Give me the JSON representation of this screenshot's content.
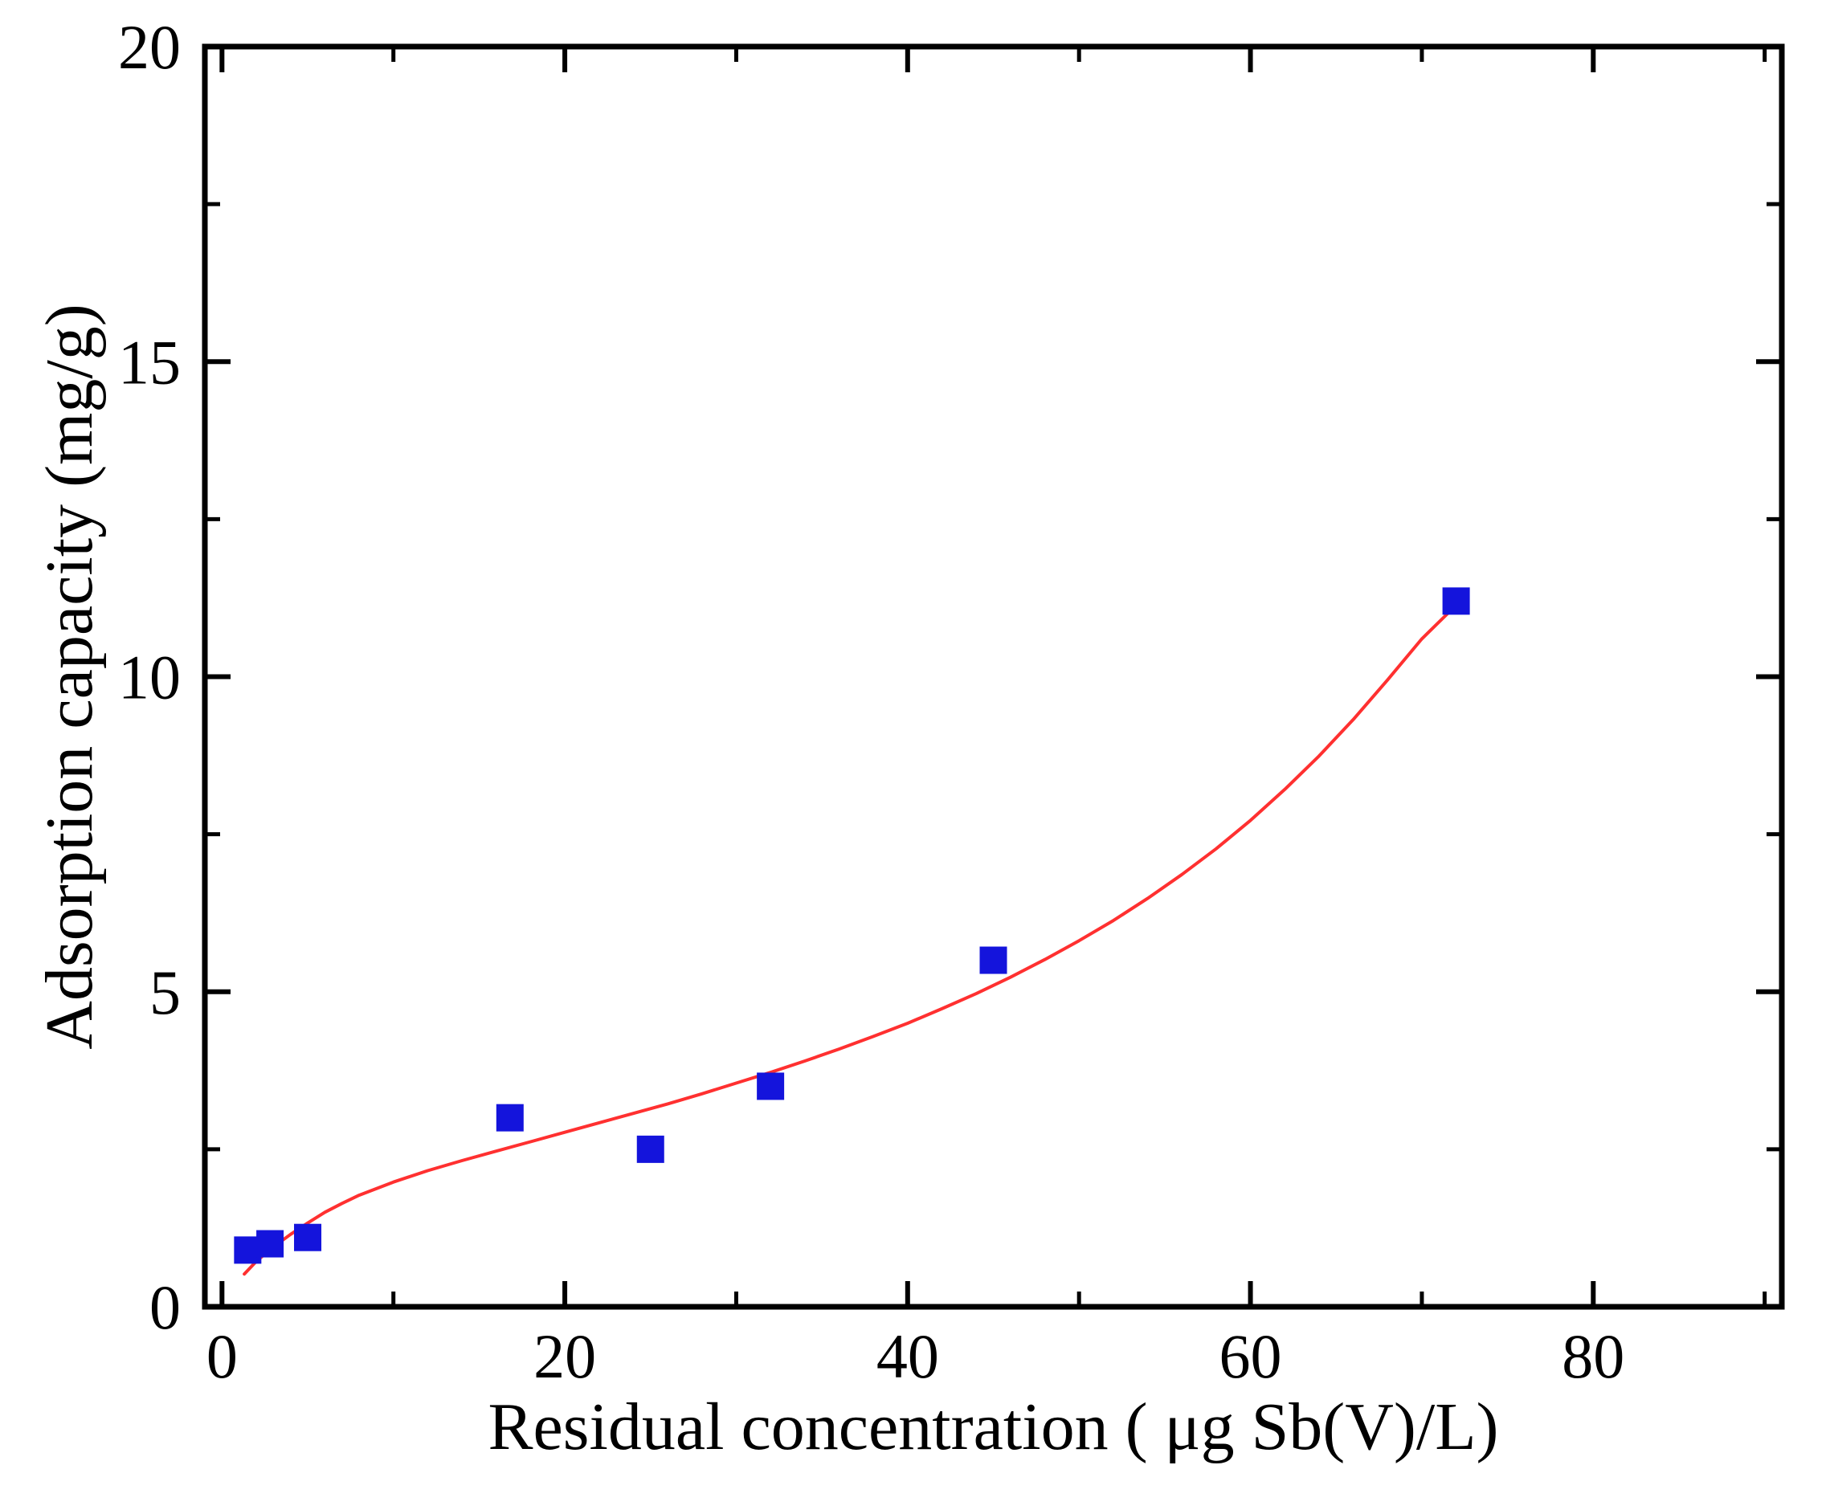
{
  "chart_data": {
    "type": "scatter",
    "title": "",
    "xlabel": "Residual concentration ( μg Sb(V)/L)",
    "ylabel": "Adsorption capacity (mg/g)",
    "xlim": [
      -1,
      91
    ],
    "ylim": [
      0,
      20
    ],
    "x_major_ticks": [
      0,
      20,
      40,
      60,
      80
    ],
    "x_minor_ticks": [
      10,
      30,
      50,
      70,
      90
    ],
    "y_major_ticks": [
      0,
      5,
      10,
      15,
      20
    ],
    "y_minor_ticks": [
      2.5,
      7.5,
      12.5,
      17.5
    ],
    "grid": false,
    "legend": "none",
    "colors": {
      "marker": "#1414dc",
      "fit_line": "#ff3030",
      "axis": "#000000",
      "background": "#ffffff"
    },
    "series": [
      {
        "marker": "square",
        "color": "#1414dc",
        "points": [
          [
            1.5,
            0.9
          ],
          [
            2.8,
            1.0
          ],
          [
            5.0,
            1.1
          ],
          [
            16.8,
            3.0
          ],
          [
            25.0,
            2.5
          ],
          [
            32.0,
            3.5
          ],
          [
            45.0,
            5.5
          ],
          [
            72.0,
            11.2
          ]
        ]
      }
    ],
    "fit_curve": {
      "color": "#ff3030",
      "points": [
        [
          1.3,
          0.52
        ],
        [
          2,
          0.72
        ],
        [
          3,
          0.95
        ],
        [
          4,
          1.15
        ],
        [
          5,
          1.33
        ],
        [
          6,
          1.5
        ],
        [
          7,
          1.64
        ],
        [
          8,
          1.77
        ],
        [
          10,
          1.98
        ],
        [
          12,
          2.16
        ],
        [
          14,
          2.32
        ],
        [
          16,
          2.47
        ],
        [
          18,
          2.62
        ],
        [
          20,
          2.77
        ],
        [
          22,
          2.92
        ],
        [
          24,
          3.07
        ],
        [
          26,
          3.22
        ],
        [
          28,
          3.38
        ],
        [
          30,
          3.55
        ],
        [
          32,
          3.72
        ],
        [
          34,
          3.9
        ],
        [
          36,
          4.09
        ],
        [
          38,
          4.29
        ],
        [
          40,
          4.5
        ],
        [
          42,
          4.73
        ],
        [
          44,
          4.97
        ],
        [
          46,
          5.23
        ],
        [
          48,
          5.51
        ],
        [
          50,
          5.81
        ],
        [
          52,
          6.13
        ],
        [
          54,
          6.48
        ],
        [
          56,
          6.86
        ],
        [
          58,
          7.27
        ],
        [
          60,
          7.72
        ],
        [
          62,
          8.21
        ],
        [
          64,
          8.74
        ],
        [
          66,
          9.32
        ],
        [
          68,
          9.95
        ],
        [
          70,
          10.6
        ],
        [
          71.5,
          11.0
        ],
        [
          72,
          11.15
        ]
      ]
    }
  }
}
